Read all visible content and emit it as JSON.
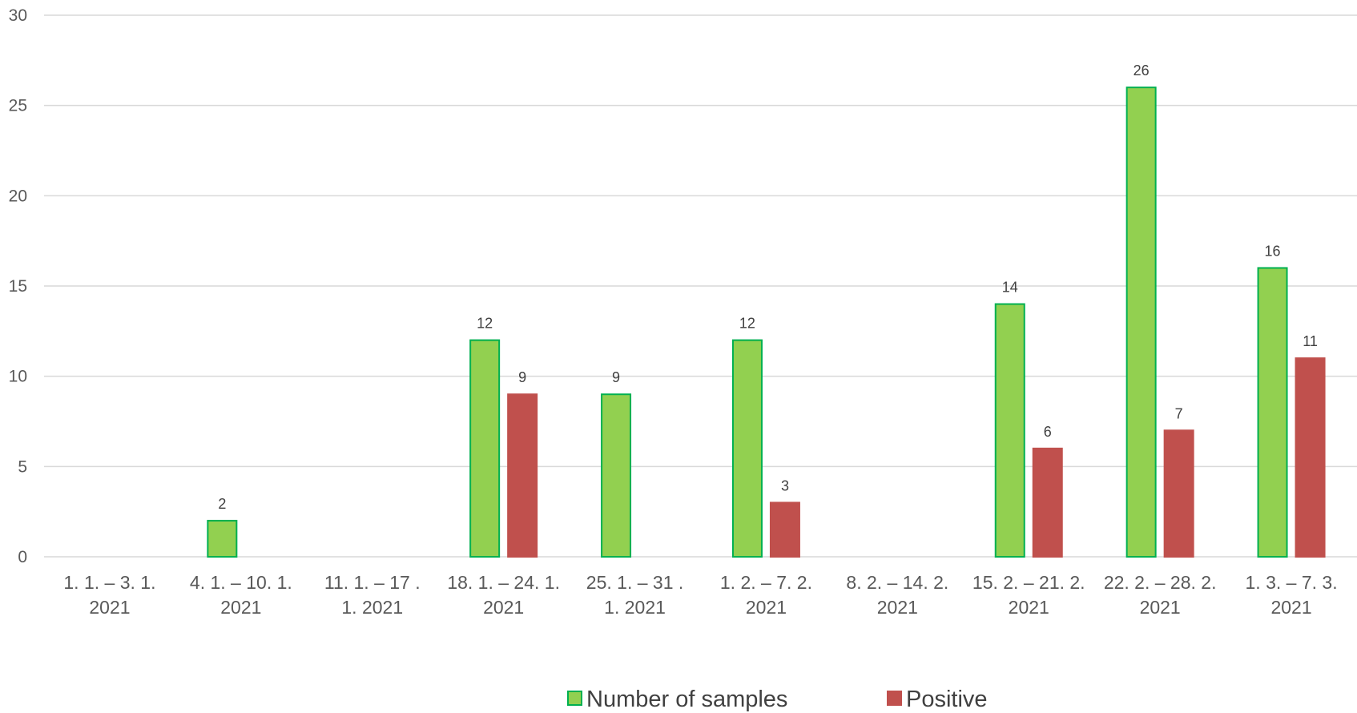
{
  "chart_data": {
    "type": "bar",
    "categories": [
      [
        "1. 1. – 3. 1.",
        "2021"
      ],
      [
        "4. 1. – 10. 1.",
        "2021"
      ],
      [
        "11. 1. – 17 .",
        "1. 2021"
      ],
      [
        "18. 1. – 24. 1.",
        "2021"
      ],
      [
        "25. 1. – 31 .",
        "1. 2021"
      ],
      [
        "1. 2. – 7. 2.",
        "2021"
      ],
      [
        "8. 2. – 14. 2.",
        "2021"
      ],
      [
        "15. 2. – 21. 2.",
        "2021"
      ],
      [
        "22. 2. – 28. 2.",
        "2021"
      ],
      [
        "1. 3. – 7. 3.",
        "2021"
      ]
    ],
    "series": [
      {
        "name": "Number of samples",
        "values": [
          0,
          2,
          0,
          12,
          9,
          12,
          0,
          14,
          26,
          16
        ],
        "color": "#92d050",
        "stroke": "#00b050"
      },
      {
        "name": "Positive",
        "values": [
          0,
          0,
          0,
          9,
          0,
          3,
          0,
          6,
          7,
          11
        ],
        "color": "#c0504d",
        "stroke": "#c0504d"
      }
    ],
    "ylim": [
      0,
      30
    ],
    "yticks": [
      0,
      5,
      10,
      15,
      20,
      25,
      30
    ],
    "grid": true,
    "legend_position": "bottom",
    "xlabel": "",
    "ylabel": "",
    "title": ""
  }
}
